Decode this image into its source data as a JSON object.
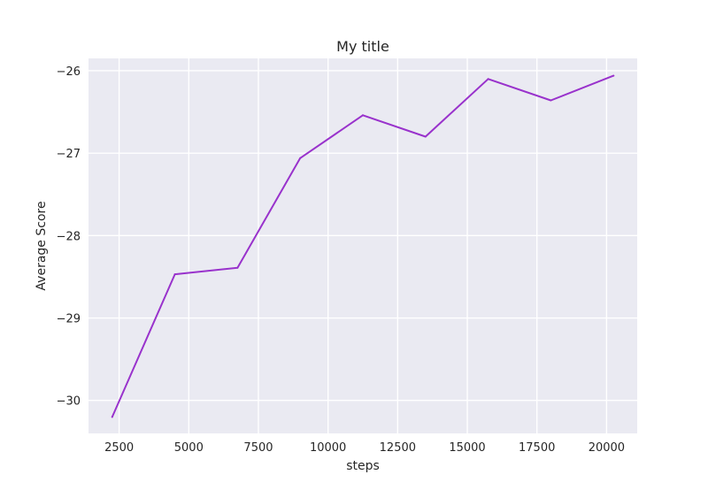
{
  "chart_data": {
    "type": "line",
    "title": "My title",
    "xlabel": "steps",
    "ylabel": "Average Score",
    "xlim": [
      1400,
      21100
    ],
    "ylim": [
      -30.4,
      -25.85
    ],
    "xticks": [
      2500,
      5000,
      7500,
      10000,
      12500,
      15000,
      17500,
      20000
    ],
    "yticks": [
      -26,
      -27,
      -28,
      -29,
      -30
    ],
    "grid": true,
    "series": [
      {
        "color": "#9932cc",
        "x": [
          2250,
          4500,
          6750,
          9000,
          11250,
          13500,
          15750,
          18000,
          20250
        ],
        "y": [
          -30.2,
          -28.47,
          -28.39,
          -27.06,
          -26.54,
          -26.8,
          -26.1,
          -26.36,
          -26.06
        ]
      }
    ],
    "colors": {
      "plot_background": "#eaeaf2",
      "grid": "#ffffff"
    }
  }
}
